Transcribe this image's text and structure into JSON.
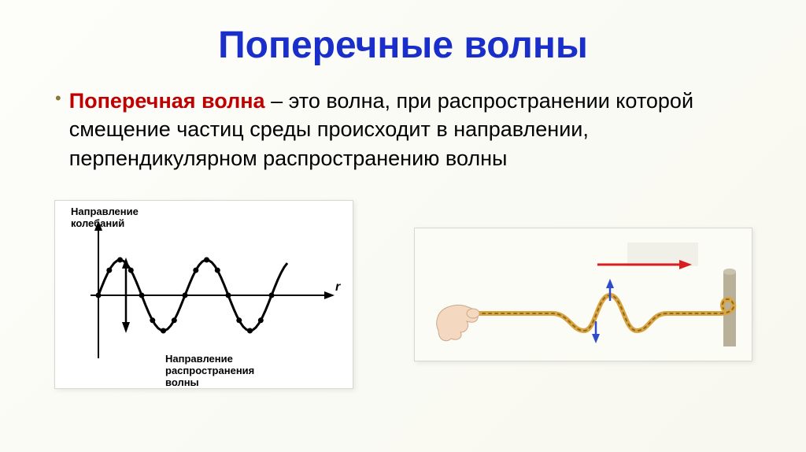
{
  "title": {
    "text": "Поперечные волны",
    "color": "#1a2ec9",
    "fontsize": 48
  },
  "definition": {
    "term": "Поперечная волна",
    "term_color": "#c00000",
    "body": " – это волна, при распространении которой смещение частиц среды происходит в направлении, перпендикулярном распространению волны",
    "fontsize": 27,
    "body_color": "#000000"
  },
  "figure1": {
    "type": "wave-diagram",
    "label_top": "Направление колебаний",
    "label_bottom": "Направление распространения волны",
    "label_color": "#000000",
    "label_fontsize": 13,
    "wave_color": "#000000",
    "axis_color": "#000000",
    "background": "#ffffff",
    "amplitude": 45,
    "wavelength": 110,
    "cycles": 2,
    "axis_end_label": "r"
  },
  "figure2": {
    "type": "rope-wave",
    "rope_color_main": "#d9a441",
    "rope_color_dark": "#8a6a20",
    "arrow_h_color": "#d81e1e",
    "arrow_v_color": "#2e4bc9",
    "hand_color": "#f4d9c0",
    "wall_color": "#b8b098",
    "background": "#fcfcf7",
    "arrow_box_bg": "#f0efe8"
  }
}
